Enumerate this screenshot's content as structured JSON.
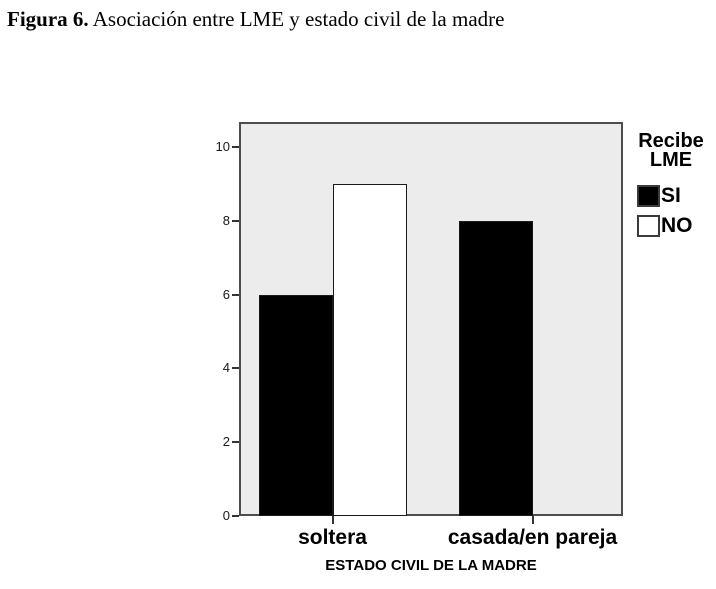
{
  "figure": {
    "caption_prefix": "Figura 6.",
    "caption_text": " Asociación entre LME y estado civil de la madre"
  },
  "chart_data": {
    "type": "bar",
    "title": "Figura 6. Asociación entre LME y estado civil de la madre",
    "categories": [
      "soltera",
      "casada/en pareja"
    ],
    "series": [
      {
        "name": "SI",
        "values": [
          6,
          8
        ],
        "fill": "#000000"
      },
      {
        "name": "NO",
        "values": [
          9,
          0
        ],
        "fill": "#ffffff"
      }
    ],
    "xlabel": "ESTADO CIVIL DE LA MADRE",
    "ylabel": "",
    "yticks": [
      0,
      2,
      4,
      6,
      8,
      10
    ],
    "ylim": [
      0,
      10.65
    ],
    "grid": false,
    "legend": {
      "title": "Recibe LME",
      "position": "right",
      "entries": [
        "SI",
        "NO"
      ]
    },
    "colors": {
      "plot_background": "#ececec",
      "frame": "#4d4d4d",
      "bar_border": "#1a1a1a"
    }
  }
}
